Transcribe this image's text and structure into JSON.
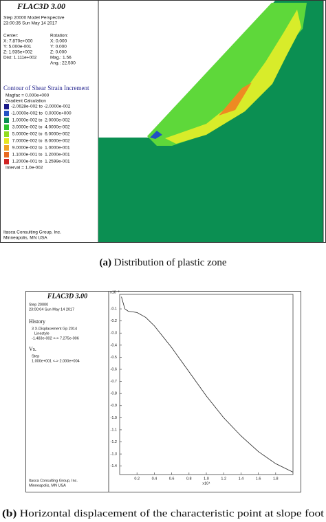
{
  "panel_a": {
    "software": "FLAC3D 3.00",
    "step": "Step 20000  Model Perspective",
    "time": "23:00:35 Sun May 14 2017",
    "view": [
      [
        "Center:",
        "Rotation:"
      ],
      [
        "X: 7.870e+000",
        "X:   0.000"
      ],
      [
        "Y: 5.000e-001",
        "Y:   0.000"
      ],
      [
        "Z: 1.935e+002",
        "Z:   0.000"
      ],
      [
        "Dist: 1.111e+002",
        "Mag.:     1.56"
      ],
      [
        "",
        "Ang.:  22.500"
      ]
    ],
    "contour_title": "Contour of Shear Strain Increment",
    "magfac": "Magfac =  0.000e+000",
    "gradient": "Gradient Calculation",
    "legend": [
      {
        "label": "-2.0628e-002 to -2.0000e-002",
        "color": "#1c1c8a"
      },
      {
        "label": "-1.0000e-002 to  0.0000e+000",
        "color": "#2251c4"
      },
      {
        "label": " 1.0000e-002 to  2.0000e-002",
        "color": "#0b8f52"
      },
      {
        "label": " 3.0000e-002 to  4.0000e-002",
        "color": "#2dc42d"
      },
      {
        "label": " 5.0000e-002 to  6.0000e-002",
        "color": "#92dc1e"
      },
      {
        "label": " 7.0000e-002 to  8.0000e-002",
        "color": "#e6e61e"
      },
      {
        "label": " 9.0000e-002 to  1.0000e-001",
        "color": "#f0a424"
      },
      {
        "label": " 1.1000e-001 to  1.2000e-001",
        "color": "#e86a22"
      },
      {
        "label": " 1.2000e-001 to  1.2599e-001",
        "color": "#d02424"
      }
    ],
    "interval": "Interval = 1.0e-002",
    "company": "Itasca Consulting Group, Inc.",
    "city": "Minneapolis, MN  USA"
  },
  "caption_a": {
    "tag": "(a)",
    "text": " Distribution of plastic zone"
  },
  "panel_b": {
    "software": "FLAC3D 3.00",
    "step": "Step 20000",
    "time": "23:00:04 Sun May 14 2017",
    "history": "History",
    "series_desc": "3 X-Displacement Gp 2014",
    "linestyle": "Linestyle",
    "range": "-1.483e-002 <-> 7.275e-006",
    "vs": "Vs.",
    "x_name": "Step",
    "x_range": "1.000e+001 <-> 2.000e+004",
    "company": "Itasca Consulting Group, Inc.",
    "city": "Minneapolis, MN  USA"
  },
  "chart_data": {
    "type": "line",
    "color": "#222222",
    "x": [
      0.02,
      0.06,
      0.1,
      0.2,
      0.3,
      0.4,
      0.6,
      0.8,
      1.0,
      1.2,
      1.4,
      1.6,
      1.8,
      2.0
    ],
    "values": [
      0.0,
      -0.1,
      -0.12,
      -0.13,
      -0.17,
      -0.24,
      -0.42,
      -0.62,
      -0.82,
      -1.0,
      -1.15,
      -1.28,
      -1.38,
      -1.45
    ],
    "xlim": [
      0,
      2.0
    ],
    "ylim": [
      -1.47,
      0.02
    ],
    "xticks": [
      0.2,
      0.4,
      0.6,
      0.8,
      {
        "value": 1,
        "label": "1.0"
      },
      1.2,
      1.4,
      1.6,
      1.8
    ],
    "yticks": [
      -0.1,
      -0.2,
      -0.3,
      -0.4,
      -0.5,
      -0.6,
      -0.7,
      -0.8,
      -0.9,
      {
        "value": -1,
        "label": "-1.0"
      },
      -1.1,
      -1.2,
      -1.3,
      -1.4
    ],
    "x_scale_label": "x10⁴",
    "y_scale_label": "x10⁻²"
  },
  "caption_b": {
    "tag": "(b)",
    "text": " Horizontal displacement of the characteristic point at slope foot"
  }
}
